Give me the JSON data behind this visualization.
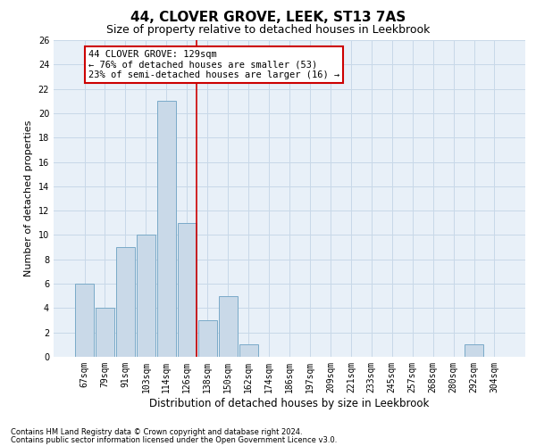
{
  "title": "44, CLOVER GROVE, LEEK, ST13 7AS",
  "subtitle": "Size of property relative to detached houses in Leekbrook",
  "xlabel": "Distribution of detached houses by size in Leekbrook",
  "ylabel": "Number of detached properties",
  "categories": [
    "67sqm",
    "79sqm",
    "91sqm",
    "103sqm",
    "114sqm",
    "126sqm",
    "138sqm",
    "150sqm",
    "162sqm",
    "174sqm",
    "186sqm",
    "197sqm",
    "209sqm",
    "221sqm",
    "233sqm",
    "245sqm",
    "257sqm",
    "268sqm",
    "280sqm",
    "292sqm",
    "304sqm"
  ],
  "values": [
    6,
    4,
    9,
    10,
    21,
    11,
    3,
    5,
    1,
    0,
    0,
    0,
    0,
    0,
    0,
    0,
    0,
    0,
    0,
    1,
    0
  ],
  "bar_color": "#c9d9e8",
  "bar_edge_color": "#7aaac8",
  "vline_index": 5,
  "vline_color": "#cc0000",
  "annotation_text": "44 CLOVER GROVE: 129sqm\n← 76% of detached houses are smaller (53)\n23% of semi-detached houses are larger (16) →",
  "annotation_box_color": "white",
  "annotation_box_edge_color": "#cc0000",
  "ylim": [
    0,
    26
  ],
  "yticks": [
    0,
    2,
    4,
    6,
    8,
    10,
    12,
    14,
    16,
    18,
    20,
    22,
    24,
    26
  ],
  "grid_color": "#c8d8e8",
  "background_color": "#e8f0f8",
  "footer_line1": "Contains HM Land Registry data © Crown copyright and database right 2024.",
  "footer_line2": "Contains public sector information licensed under the Open Government Licence v3.0.",
  "title_fontsize": 11,
  "subtitle_fontsize": 9,
  "xlabel_fontsize": 8.5,
  "ylabel_fontsize": 8,
  "tick_fontsize": 7,
  "annotation_fontsize": 7.5,
  "footer_fontsize": 6
}
